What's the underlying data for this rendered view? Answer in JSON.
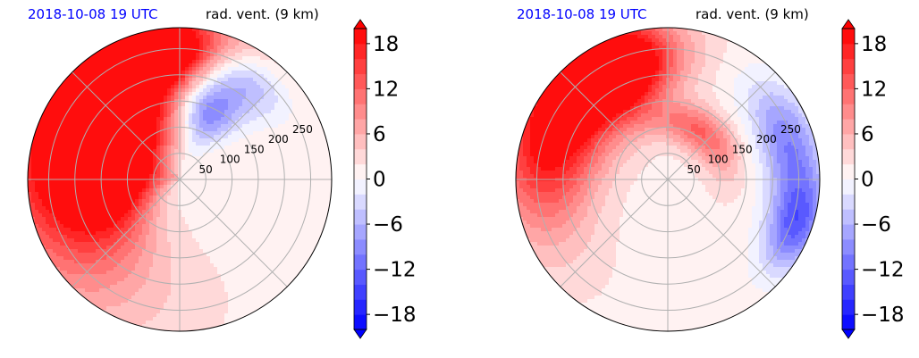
{
  "chart_data": [
    {
      "type": "heatmap",
      "projection": "polar",
      "title_left": "2018-10-08 19 UTC",
      "title_right": "rad. vent. (9 km)",
      "radial_ticks": [
        "50",
        "100",
        "150",
        "200",
        "250"
      ],
      "radial_tick_values": [
        50,
        100,
        150,
        200,
        250
      ],
      "rlim": [
        0,
        290
      ],
      "angular_grid_deg": [
        0,
        45,
        90,
        135,
        180,
        225,
        270,
        315
      ],
      "grid": true,
      "colorbar": {
        "ticks": [
          "18",
          "12",
          "6",
          "0",
          "−6",
          "−12",
          "−18"
        ],
        "tick_values": [
          18,
          12,
          6,
          0,
          -6,
          -12,
          -18
        ],
        "range": [
          -20,
          20
        ],
        "extend": "both",
        "levels": 20,
        "colormap": "bwr"
      },
      "fields": [
        {
          "sign": "positive",
          "magnitude": 1,
          "center_r": 225,
          "center_theta_deg": 150,
          "spread_r": 90,
          "spread_theta_deg": 55
        },
        {
          "sign": "positive",
          "magnitude": 1,
          "center_r": 120,
          "center_theta_deg": 165,
          "spread_r": 65,
          "spread_theta_deg": 40
        },
        {
          "sign": "positive",
          "magnitude": 1,
          "center_r": 245,
          "center_theta_deg": 105,
          "spread_r": 45,
          "spread_theta_deg": 22
        },
        {
          "sign": "negative",
          "magnitude": 0.7,
          "center_r": 145,
          "center_theta_deg": 68,
          "spread_r": 50,
          "spread_theta_deg": 18
        },
        {
          "sign": "negative",
          "magnitude": 0.45,
          "center_r": 230,
          "center_theta_deg": 60,
          "spread_r": 40,
          "spread_theta_deg": 20
        }
      ],
      "background_value": 1.2
    },
    {
      "type": "heatmap",
      "projection": "polar",
      "title_left": "2018-10-08 19 UTC",
      "title_right": "rad. vent. (9 km)",
      "radial_ticks": [
        "50",
        "100",
        "150",
        "200",
        "250"
      ],
      "radial_tick_values": [
        50,
        100,
        150,
        200,
        250
      ],
      "rlim": [
        0,
        290
      ],
      "angular_grid_deg": [
        0,
        45,
        90,
        135,
        180,
        225,
        270,
        315
      ],
      "grid": true,
      "colorbar": {
        "ticks": [
          "18",
          "12",
          "6",
          "0",
          "−6",
          "−12",
          "−18"
        ],
        "tick_values": [
          18,
          12,
          6,
          0,
          -6,
          -12,
          -18
        ],
        "range": [
          -20,
          20
        ],
        "extend": "both",
        "levels": 20,
        "colormap": "bwr"
      },
      "fields": [
        {
          "sign": "positive",
          "magnitude": 1,
          "center_r": 230,
          "center_theta_deg": 150,
          "spread_r": 70,
          "spread_theta_deg": 35
        },
        {
          "sign": "positive",
          "magnitude": 0.9,
          "center_r": 230,
          "center_theta_deg": 115,
          "spread_r": 55,
          "spread_theta_deg": 18
        },
        {
          "sign": "positive",
          "magnitude": 0.5,
          "center_r": 110,
          "center_theta_deg": 55,
          "spread_r": 30,
          "spread_theta_deg": 35
        },
        {
          "sign": "negative",
          "magnitude": 0.5,
          "center_r": 240,
          "center_theta_deg": 15,
          "spread_r": 40,
          "spread_theta_deg": 22
        },
        {
          "sign": "negative",
          "magnitude": 0.55,
          "center_r": 260,
          "center_theta_deg": -20,
          "spread_r": 35,
          "spread_theta_deg": 14
        }
      ],
      "background_value": 1.2
    }
  ]
}
